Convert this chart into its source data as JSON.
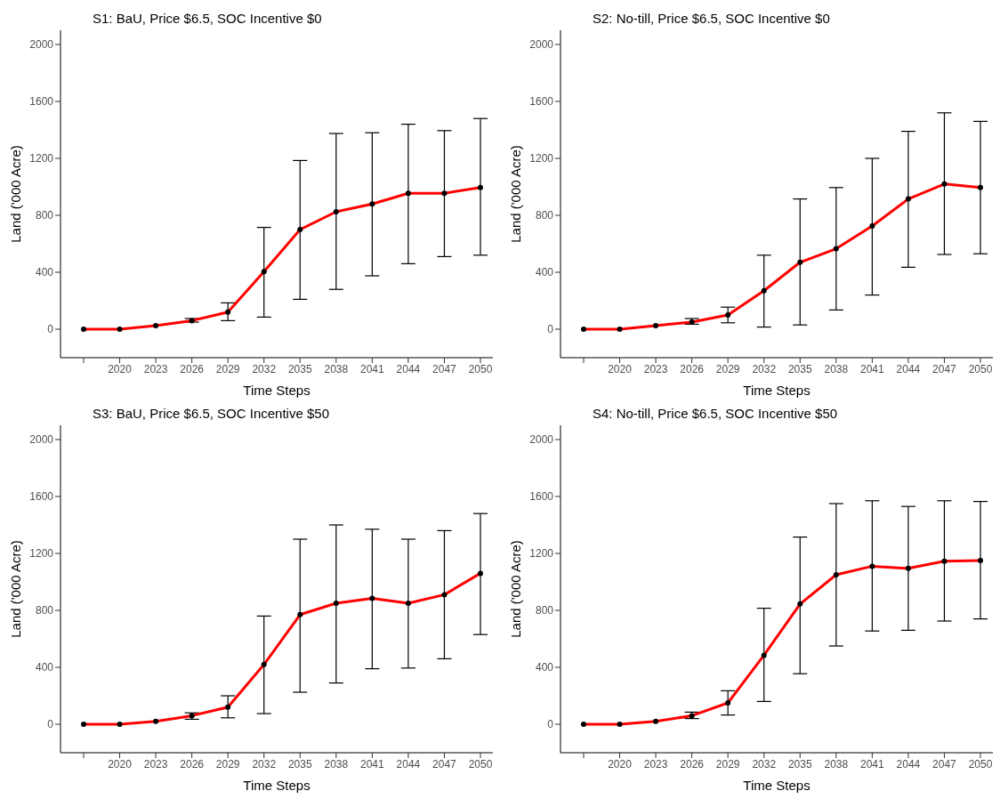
{
  "chart_data": [
    {
      "type": "line",
      "title": "S1: BaU, Price $6.5, SOC Incentive $0",
      "xlabel": "Time Steps",
      "ylabel": "Land ('000 Acre)",
      "categories": [
        null,
        "2020",
        "2023",
        "2026",
        "2029",
        "2032",
        "2035",
        "2038",
        "2041",
        "2044",
        "2047",
        "2050"
      ],
      "ylim": [
        -200,
        2100
      ],
      "yticks": [
        0,
        400,
        800,
        1200,
        1600,
        2000
      ],
      "grid": false,
      "marker": "circle",
      "line_style": "solid",
      "series": [
        {
          "color": "#ff0000",
          "values": [
            0,
            0,
            25,
            60,
            120,
            405,
            700,
            825,
            880,
            955,
            955,
            995
          ],
          "errors": [
            null,
            null,
            null,
            [
              50,
              75
            ],
            [
              60,
              185
            ],
            [
              85,
              715
            ],
            [
              210,
              1185
            ],
            [
              280,
              1375
            ],
            [
              375,
              1380
            ],
            [
              460,
              1440
            ],
            [
              510,
              1395
            ],
            [
              520,
              1480
            ]
          ]
        }
      ]
    },
    {
      "type": "line",
      "title": "S2: No-till, Price $6.5, SOC Incentive $0",
      "xlabel": "Time Steps",
      "ylabel": "Land ('000 Acre)",
      "categories": [
        null,
        "2020",
        "2023",
        "2026",
        "2029",
        "2032",
        "2035",
        "2038",
        "2041",
        "2044",
        "2047",
        "2050"
      ],
      "ylim": [
        -200,
        2100
      ],
      "yticks": [
        0,
        400,
        800,
        1200,
        1600,
        2000
      ],
      "grid": false,
      "marker": "circle",
      "line_style": "solid",
      "series": [
        {
          "color": "#ff0000",
          "values": [
            0,
            0,
            25,
            50,
            100,
            270,
            470,
            565,
            725,
            915,
            1020,
            995
          ],
          "errors": [
            null,
            null,
            null,
            [
              35,
              75
            ],
            [
              45,
              155
            ],
            [
              15,
              520
            ],
            [
              30,
              915
            ],
            [
              135,
              995
            ],
            [
              240,
              1200
            ],
            [
              435,
              1390
            ],
            [
              525,
              1520
            ],
            [
              530,
              1460
            ]
          ]
        }
      ]
    },
    {
      "type": "line",
      "title": "S3: BaU, Price $6.5, SOC Incentive $50",
      "xlabel": "Time Steps",
      "ylabel": "Land ('000 Acre)",
      "categories": [
        null,
        "2020",
        "2023",
        "2026",
        "2029",
        "2032",
        "2035",
        "2038",
        "2041",
        "2044",
        "2047",
        "2050"
      ],
      "ylim": [
        -200,
        2100
      ],
      "yticks": [
        0,
        400,
        800,
        1200,
        1600,
        2000
      ],
      "grid": false,
      "marker": "circle",
      "line_style": "solid",
      "series": [
        {
          "color": "#ff0000",
          "values": [
            0,
            0,
            20,
            60,
            120,
            420,
            770,
            850,
            885,
            850,
            910,
            1060
          ],
          "errors": [
            null,
            null,
            null,
            [
              35,
              80
            ],
            [
              45,
              200
            ],
            [
              75,
              760
            ],
            [
              225,
              1300
            ],
            [
              290,
              1400
            ],
            [
              390,
              1370
            ],
            [
              395,
              1300
            ],
            [
              460,
              1360
            ],
            [
              630,
              1480
            ]
          ]
        }
      ]
    },
    {
      "type": "line",
      "title": "S4: No-till, Price $6.5, SOC Incentive $50",
      "xlabel": "Time Steps",
      "ylabel": "Land ('000 Acre)",
      "categories": [
        null,
        "2020",
        "2023",
        "2026",
        "2029",
        "2032",
        "2035",
        "2038",
        "2041",
        "2044",
        "2047",
        "2050"
      ],
      "ylim": [
        -200,
        2100
      ],
      "yticks": [
        0,
        400,
        800,
        1200,
        1600,
        2000
      ],
      "grid": false,
      "marker": "circle",
      "line_style": "solid",
      "series": [
        {
          "color": "#ff0000",
          "values": [
            0,
            0,
            20,
            60,
            150,
            485,
            845,
            1050,
            1110,
            1095,
            1145,
            1150
          ],
          "errors": [
            null,
            null,
            null,
            [
              40,
              85
            ],
            [
              65,
              235
            ],
            [
              160,
              815
            ],
            [
              355,
              1315
            ],
            [
              550,
              1550
            ],
            [
              655,
              1570
            ],
            [
              660,
              1530
            ],
            [
              725,
              1570
            ],
            [
              740,
              1565
            ]
          ]
        }
      ]
    }
  ]
}
